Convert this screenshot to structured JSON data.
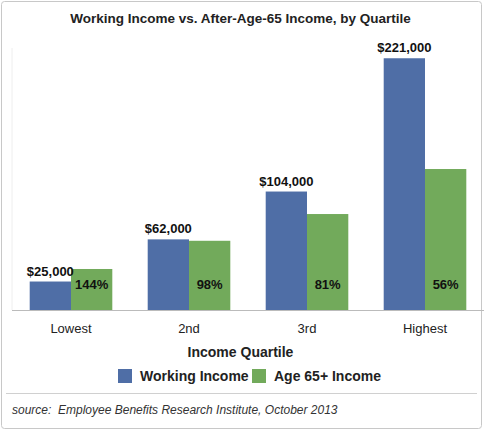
{
  "chart_data": {
    "type": "bar",
    "title": "Working Income vs. After-Age-65 Income, by Quartile",
    "x_label": "Income Quartile",
    "source": "source:  Employee Benefits Research Institute, October 2013",
    "categories": [
      "Lowest",
      "2nd",
      "3rd",
      "Highest"
    ],
    "series": [
      {
        "name": "Working Income",
        "color": "#4f6ea6",
        "values": [
          25000,
          62000,
          104000,
          221000
        ],
        "value_labels": [
          "$25,000",
          "$62,000",
          "$104,000",
          "$221,000"
        ]
      },
      {
        "name": "Age 65+ Income",
        "color": "#72aa5b",
        "values": [
          36000,
          60760,
          84240,
          123760
        ],
        "percent_labels": [
          "144%",
          "98%",
          "81%",
          "56%"
        ]
      }
    ],
    "ylim": [
      0,
      230000
    ],
    "data_labels": true,
    "tick_labels": "x",
    "legend": "bottom",
    "grid": false
  }
}
